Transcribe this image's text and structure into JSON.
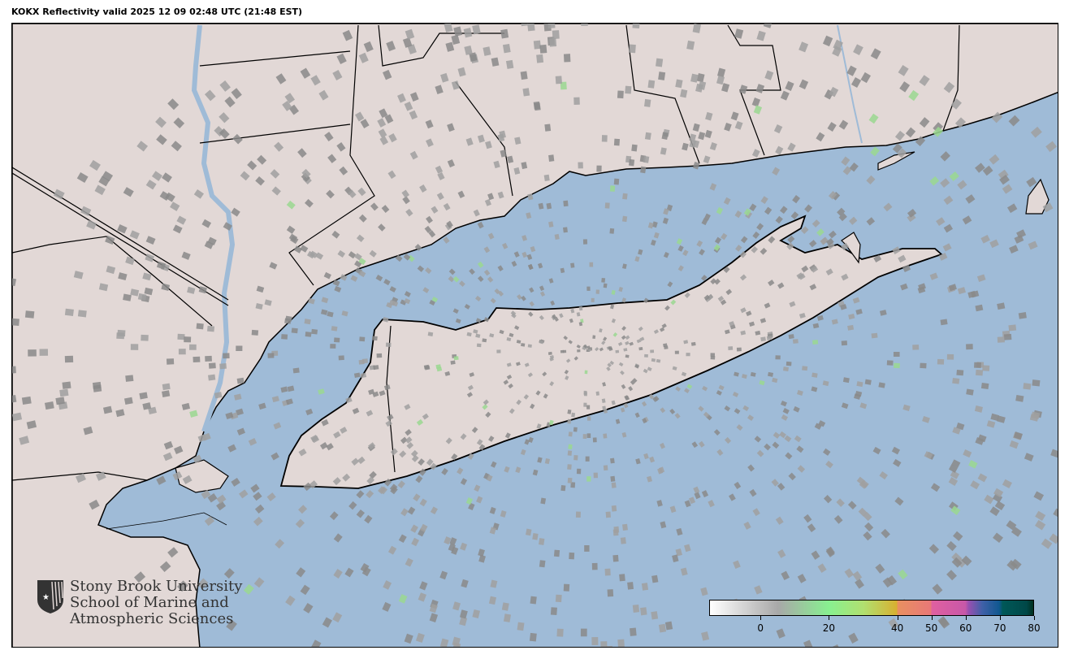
{
  "title": "KOKX Reflectivity valid 2025 12 09 02:48 UTC (21:48 EST)",
  "colors": {
    "land": "#e2d8d6",
    "water": "#9fbbd7",
    "border": "#000000",
    "echo": "#8a8a8a"
  },
  "logo": {
    "line1": "Stony Brook University",
    "line2": "School of Marine and",
    "line3": "Atmospheric Sciences"
  },
  "colorbar": {
    "range": [
      -15,
      80
    ],
    "ticks": [
      {
        "value": 0,
        "label": "0"
      },
      {
        "value": 20,
        "label": "20"
      },
      {
        "value": 40,
        "label": "40"
      },
      {
        "value": 50,
        "label": "50"
      },
      {
        "value": 60,
        "label": "60"
      },
      {
        "value": 70,
        "label": "70"
      },
      {
        "value": 80,
        "label": "80"
      }
    ],
    "stops": [
      {
        "value": -15,
        "color": "#ffffff"
      },
      {
        "value": 5,
        "color": "#a8a8a8"
      },
      {
        "value": 20,
        "color": "#88f090"
      },
      {
        "value": 30,
        "color": "#b0e070"
      },
      {
        "value": 40,
        "color": "#d8b030"
      },
      {
        "value": 40.1,
        "color": "#e89060"
      },
      {
        "value": 50,
        "color": "#e87878"
      },
      {
        "value": 50.1,
        "color": "#e060a0"
      },
      {
        "value": 60,
        "color": "#c858a8"
      },
      {
        "value": 61,
        "color": "#9850b0"
      },
      {
        "value": 65,
        "color": "#4060a8"
      },
      {
        "value": 70,
        "color": "#105890"
      },
      {
        "value": 71,
        "color": "#005858"
      },
      {
        "value": 78,
        "color": "#004848"
      },
      {
        "value": 80,
        "color": "#003020"
      }
    ]
  }
}
